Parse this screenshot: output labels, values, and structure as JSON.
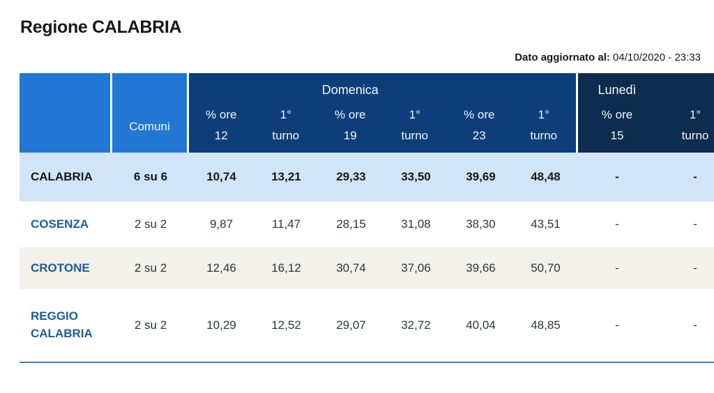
{
  "header": {
    "title": "Regione CALABRIA",
    "updated_label": "Dato aggiornato al:",
    "updated_value": "04/10/2020 - 23:33"
  },
  "table": {
    "comuni_header": "Comuni",
    "domenica": {
      "label": "Domenica",
      "cols": [
        {
          "l1": "% ore",
          "l2": "12"
        },
        {
          "l1": "1°",
          "l2": "turno"
        },
        {
          "l1": "% ore",
          "l2": "19"
        },
        {
          "l1": "1°",
          "l2": "turno"
        },
        {
          "l1": "% ore",
          "l2": "23"
        },
        {
          "l1": "1°",
          "l2": "turno"
        }
      ]
    },
    "lunedi": {
      "label": "Lunedì",
      "cols": [
        {
          "l1": "% ore",
          "l2": "15"
        },
        {
          "l1": "1°",
          "l2": "turno"
        }
      ]
    },
    "rows": [
      {
        "name": "CALABRIA",
        "comuni": "6 su 6",
        "v": [
          "10,74",
          "13,21",
          "29,33",
          "33,50",
          "39,69",
          "48,48",
          "-",
          "-"
        ]
      },
      {
        "name": "COSENZA",
        "comuni": "2 su 2",
        "v": [
          "9,87",
          "11,47",
          "28,15",
          "31,08",
          "38,30",
          "43,51",
          "-",
          "-"
        ]
      },
      {
        "name": "CROTONE",
        "comuni": "2 su 2",
        "v": [
          "12,46",
          "16,12",
          "30,74",
          "37,06",
          "39,66",
          "50,70",
          "-",
          "-"
        ]
      },
      {
        "name": "REGGIO CALABRIA",
        "comuni": "2 su 2",
        "v": [
          "10,29",
          "12,52",
          "29,07",
          "32,72",
          "40,04",
          "48,85",
          "-",
          "-"
        ]
      }
    ]
  },
  "colors": {
    "header_blue": "#2277d4",
    "domenica_navy": "#0d3e79",
    "lunedi_navy": "#0e2b50",
    "highlight_row": "#d2e5f8",
    "alt_row_beige": "#f3f1ea",
    "province_link": "#1a5c9c",
    "bottom_border": "#3d7fc9"
  }
}
